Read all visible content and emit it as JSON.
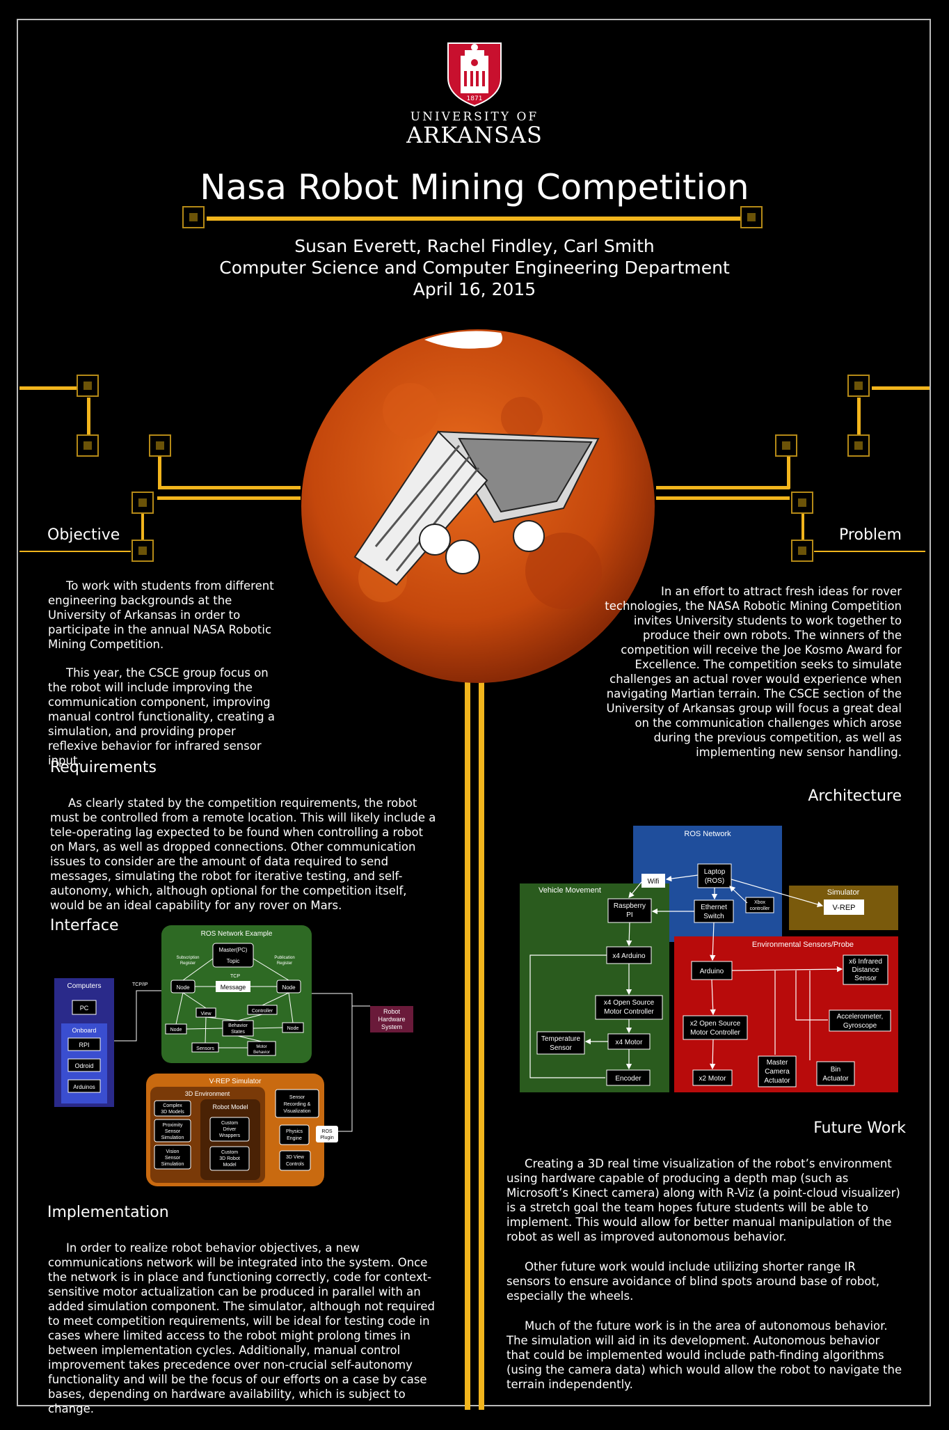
{
  "logo": {
    "year": "1871",
    "line1": "UNIVERSITY OF",
    "line2": "ARKANSAS"
  },
  "header": {
    "title": "Nasa Robot Mining Competition",
    "authors": "Susan Everett, Rachel Findley, Carl Smith",
    "department": "Computer Science and Computer Engineering Department",
    "date": "April 16, 2015"
  },
  "colors": {
    "accent": "#f2b51d",
    "mars": "#c9500f",
    "ros": "#1f4e9c",
    "vehicle": "#2a5b1e",
    "sim": "#7a5a0c",
    "sensors": "#b80b0b",
    "vrep": "#c96a10"
  },
  "objective": {
    "heading": "Objective",
    "p1": "To work with students from different engineering backgrounds at the University of Arkansas in order to participate in the annual NASA Robotic Mining Competition.",
    "p2": "This year, the CSCE group focus on the robot will include improving the communication component, improving manual control functionality, creating a simulation, and providing proper reflexive behavior for infrared sensor input."
  },
  "problem": {
    "heading": "Problem",
    "p1": "In an effort to attract fresh ideas for rover technologies, the NASA Robotic Mining Competition invites University students to work together to produce their own robots. The winners of the competition will receive the Joe Kosmo Award for Excellence. The competition seeks to simulate challenges an actual rover would experience when navigating Martian terrain. The CSCE section of the University of Arkansas group will focus a great deal on the communication challenges which arose during the previous competition, as well as implementing new sensor handling."
  },
  "requirements": {
    "heading": "Requirements",
    "p1": "As clearly stated by the competition requirements, the robot must be controlled from a remote location. This will likely include a tele-operating lag expected to be found when controlling a robot on Mars, as well as dropped connections. Other communication issues to consider are the amount of data required to send messages, simulating the robot for iterative testing, and self-autonomy, which, although optional for the competition itself, would be an ideal capability for any rover on Mars."
  },
  "architecture": {
    "heading": "Architecture"
  },
  "interface": {
    "heading": "Interface"
  },
  "implementation": {
    "heading": "Implementation",
    "p1": "In order to realize robot behavior objectives, a new communications network will be integrated into the system. Once the network is in place and functioning correctly, code for context-sensitive motor actualization can be produced in parallel with an added simulation component. The simulator, although not required to meet competition requirements, will be ideal for testing code in cases where limited access to the robot might prolong times in between implementation cycles. Additionally, manual control improvement takes precedence over non-crucial self-autonomy functionality and will be the focus of our efforts on a case by case bases, depending on hardware availability, which is subject to change."
  },
  "future": {
    "heading": "Future Work",
    "p1": "Creating a 3D real time visualization of the robot’s environment using hardware capable of producing a depth map (such as Microsoft’s Kinect camera) along with R-Viz (a point-cloud visualizer) is a stretch goal the team hopes future students will be able to implement. This would allow for better manual manipulation of the robot as well as improved autonomous behavior.",
    "p2": "Other future work would include utilizing shorter range IR sensors to ensure avoidance of blind spots around base of robot, especially the wheels.",
    "p3": "Much of the future work is in the area of autonomous behavior. The simulation will aid in its development. Autonomous behavior that could be implemented would include path-finding algorithms (using the camera data) which would allow the robot to navigate the terrain independently."
  },
  "arch_diagram": {
    "ros_network": "ROS Network",
    "laptop_1": "Laptop",
    "laptop_2": "(ROS)",
    "wifi": "Wifi",
    "xbox_1": "Xbox",
    "xbox_2": "controller",
    "ethernet_1": "Ethernet",
    "ethernet_2": "Switch",
    "simulator": "Simulator",
    "vrep": "V-REP",
    "vehicle_movement": "Vehicle Movement",
    "raspberry_1": "Raspberry",
    "raspberry_2": "PI",
    "x4_arduino": "x4 Arduino",
    "x4_osmc_1": "x4 Open Source",
    "x4_osmc_2": "Motor Controller",
    "x4_motor": "x4 Motor",
    "temp_1": "Temperature",
    "temp_2": "Sensor",
    "encoder": "Encoder",
    "env_sensors": "Environmental Sensors/Probe",
    "arduino": "Arduino",
    "ir_1": "x6 Infrared",
    "ir_2": "Distance",
    "ir_3": "Sensor",
    "accel_1": "Accelerometer,",
    "accel_2": "Gyroscope",
    "x2_osmc_1": "x2 Open Source",
    "x2_osmc_2": "Motor Controller",
    "x2_motor": "x2 Motor",
    "cam_1": "Master",
    "cam_2": "Camera",
    "cam_3": "Actuator",
    "bin_1": "Bin",
    "bin_2": "Actuator"
  },
  "iface_diagram": {
    "computers": "Computers",
    "pc": "PC",
    "onboard": "Onboard",
    "rpi": "RPI",
    "odroid": "Odroid",
    "arduinos": "Arduinos",
    "tcpip": "TCP/IP",
    "ros_example": "ROS Network Example",
    "master_1": "Master(PC)",
    "master_2": "Topic",
    "sub_1": "Subscription",
    "sub_2": "Register",
    "pub_1": "Publication",
    "pub_2": "Register",
    "tcp": "TCP",
    "node": "Node",
    "message": "Message",
    "view": "View",
    "controller": "Controller",
    "behavior_1": "Behavior",
    "behavior_2": "States",
    "sensors": "Sensors",
    "motor_1": "Motor",
    "motor_2": "Behavior",
    "robot_hw_1": "Robot",
    "robot_hw_2": "Hardware",
    "robot_hw_3": "System",
    "vrep_sim": "V-REP Simulator",
    "env3d": "3D Environment",
    "complex_1": "Complex",
    "complex_2": "3D Models",
    "robot_model": "Robot Model",
    "prox_1": "Proximity",
    "prox_2": "Sensor",
    "prox_3": "Simulation",
    "custom_drv_1": "Custom",
    "custom_drv_2": "Driver",
    "custom_drv_3": "Wrappers",
    "vision_1": "Vision",
    "vision_2": "Sensor",
    "vision_3": "Simulation",
    "custom_3d_1": "Custom",
    "custom_3d_2": "3D Robot",
    "custom_3d_3": "Model",
    "sensor_rec_1": "Sensor",
    "sensor_rec_2": "Recording &",
    "sensor_rec_3": "Visualization",
    "physics_1": "Physics",
    "physics_2": "Engine",
    "ros_plugin_1": "ROS",
    "ros_plugin_2": "Plugin",
    "view3d_1": "3D View",
    "view3d_2": "Controls"
  }
}
